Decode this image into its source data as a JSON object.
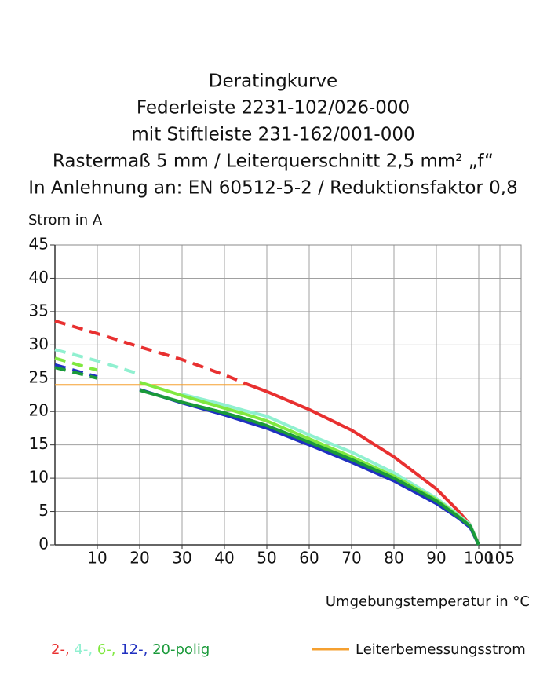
{
  "chart_data": {
    "type": "line",
    "title_lines": [
      "Deratingkurve",
      "Federleiste 2231-102/026-000",
      "mit Stiftleiste 231-162/001-000",
      "Rastermaß 5 mm / Leiterquerschnitt 2,5 mm² „f“",
      "In Anlehnung an: EN 60512-5-2 / Reduktionsfaktor 0,8"
    ],
    "y_label": "Strom in A",
    "x_label": "Umgebungstemperatur in °C",
    "x": [
      0,
      10,
      20,
      30,
      40,
      45,
      50,
      60,
      70,
      80,
      90,
      95,
      98,
      100
    ],
    "series": [
      {
        "name": "2-,",
        "color": "#e83030",
        "dash_until": 45,
        "values": [
          33.6,
          31.7,
          29.7,
          27.8,
          25.5,
          24.2,
          23,
          20.3,
          17.2,
          13.2,
          8.4,
          5.2,
          3,
          0
        ]
      },
      {
        "name": "4-,",
        "color": "#90f0d0",
        "dash_until": 25,
        "values": [
          29.3,
          27.6,
          25.6,
          22.6,
          21,
          20.1,
          19.3,
          16.5,
          13.9,
          10.8,
          7,
          4.6,
          3,
          0
        ]
      },
      {
        "name": "6-,",
        "color": "#80e840",
        "dash_until": 17,
        "values": [
          28,
          26.2,
          24.4,
          22.4,
          20.5,
          19.6,
          18.6,
          15.9,
          13.2,
          10.3,
          6.8,
          4.4,
          2.8,
          0
        ]
      },
      {
        "name": "12-,",
        "color": "#2030c0",
        "dash_until": 15,
        "values": [
          27,
          25.2,
          23.3,
          21.3,
          19.5,
          18.5,
          17.5,
          15,
          12.4,
          9.6,
          6.2,
          4.1,
          2.6,
          0
        ]
      },
      {
        "name": "20-polig",
        "color": "#1a9a3a",
        "dash_until": 15,
        "values": [
          26.6,
          25,
          23.2,
          21.4,
          19.8,
          18.9,
          17.9,
          15.4,
          12.8,
          10,
          6.6,
          4.3,
          2.8,
          0
        ]
      }
    ],
    "reference_line": {
      "name": "Leiterbemessungsstrom",
      "color": "#f5a030",
      "value": 24,
      "x": [
        0,
        45
      ]
    },
    "xlim": [
      0,
      110
    ],
    "xticks": [
      10,
      20,
      30,
      40,
      50,
      60,
      70,
      80,
      90,
      100,
      105
    ],
    "ylim": [
      0,
      45
    ],
    "yticks": [
      0,
      5,
      10,
      15,
      20,
      25,
      30,
      35,
      40,
      45
    ],
    "grid": true
  }
}
